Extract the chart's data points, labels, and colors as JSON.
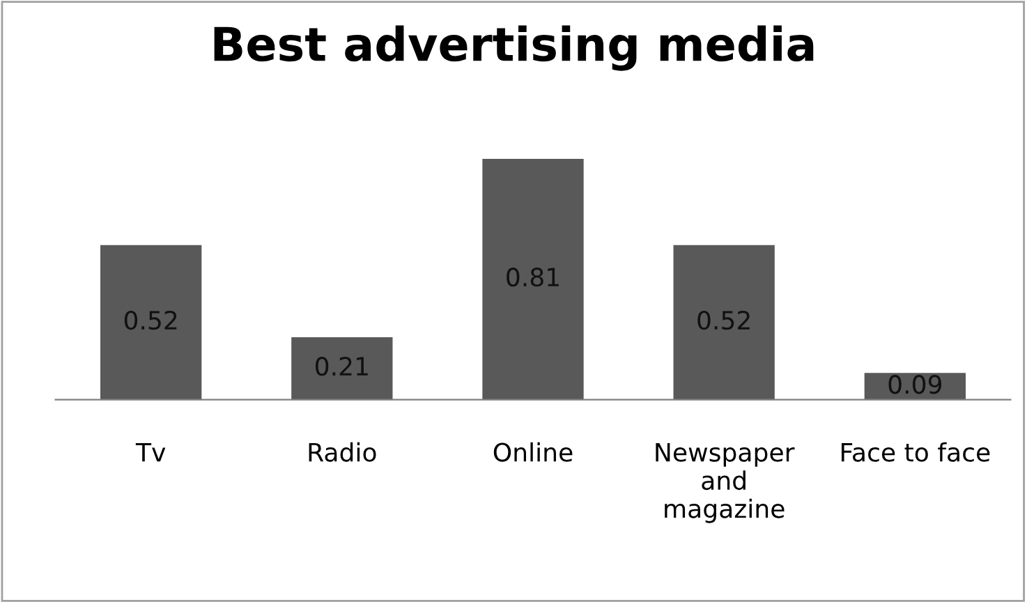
{
  "chart_data": {
    "type": "bar",
    "title": "Best advertising media",
    "categories": [
      "Tv",
      "Radio",
      "Online",
      "Newspaper and magazine",
      "Face to face"
    ],
    "values": [
      0.52,
      0.21,
      0.81,
      0.52,
      0.09
    ],
    "color": "#595959",
    "data_labels": true,
    "grid": false,
    "legend": false
  }
}
